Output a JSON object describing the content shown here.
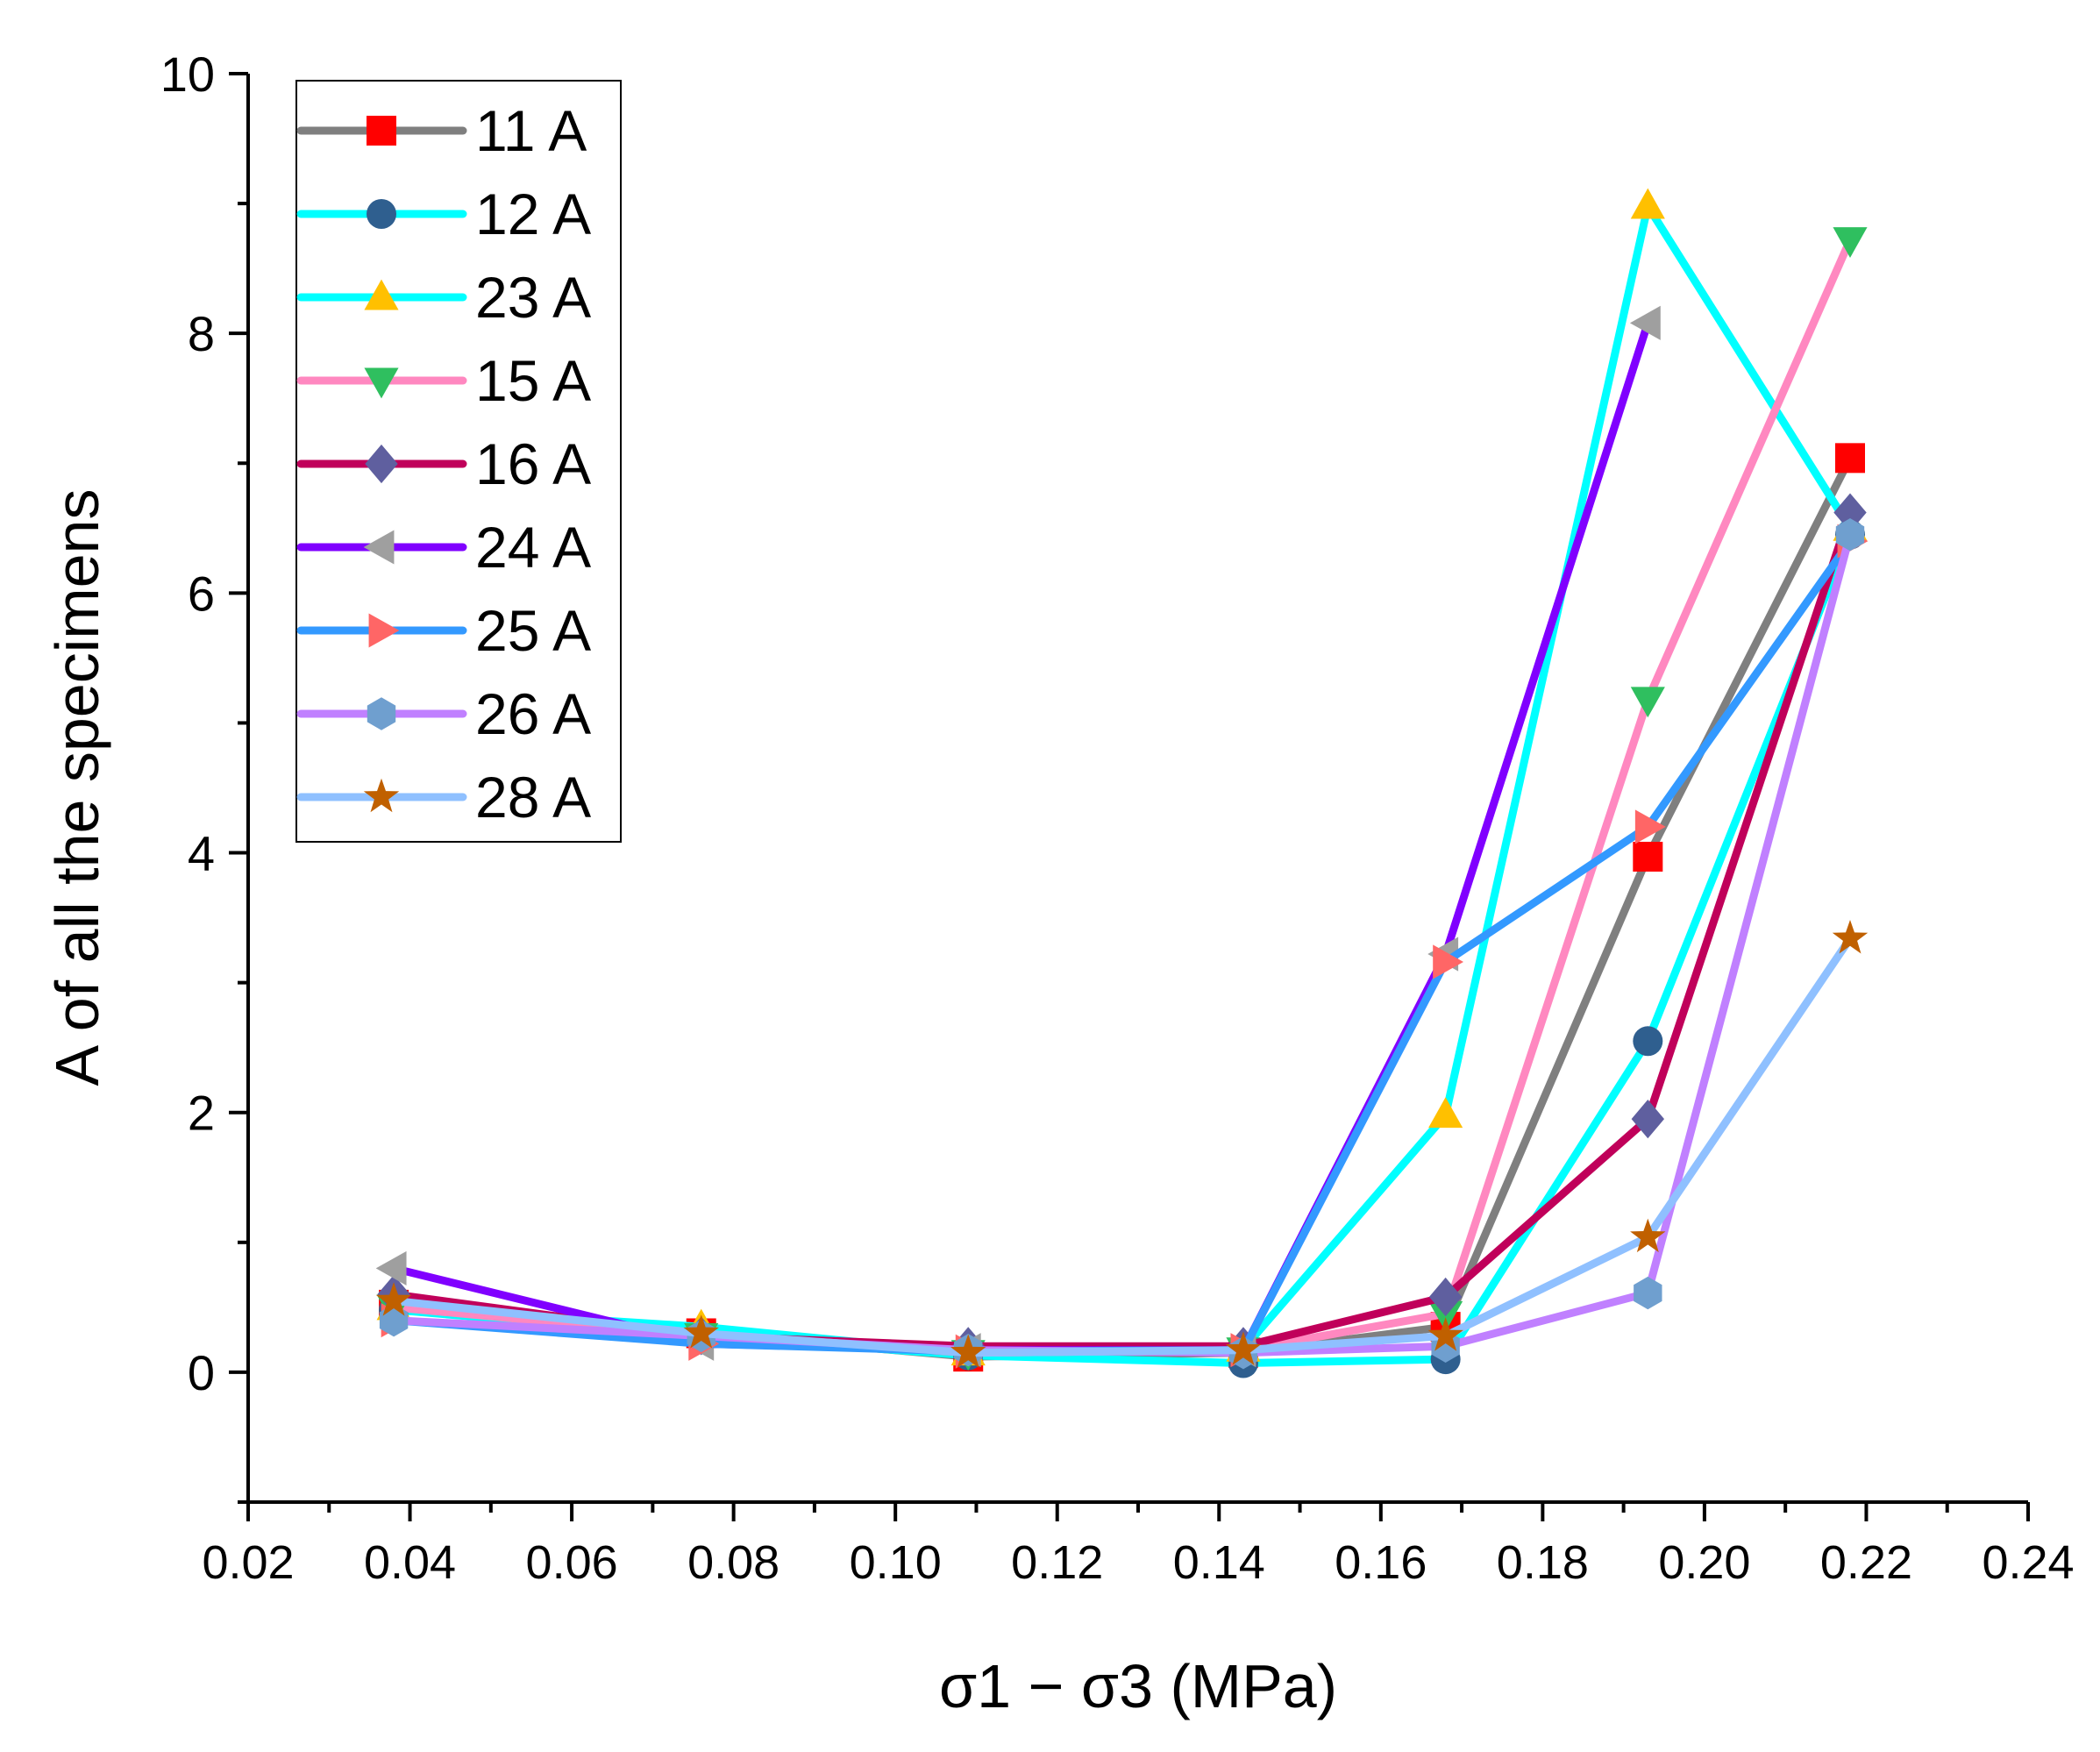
{
  "chart_data": {
    "type": "line",
    "xlabel": "σ1 − σ3 (MPa)",
    "ylabel": "A of all the specimens",
    "xlim": [
      0.02,
      0.24
    ],
    "ylim": [
      -1,
      10
    ],
    "x_ticks": [
      0.02,
      0.04,
      0.06,
      0.08,
      0.1,
      0.12,
      0.14,
      0.16,
      0.18,
      0.2,
      0.22,
      0.24
    ],
    "x_tick_labels": [
      "0.02",
      "0.04",
      "0.06",
      "0.08",
      "0.10",
      "0.12",
      "0.14",
      "0.16",
      "0.18",
      "0.20",
      "0.22",
      "0.24"
    ],
    "y_ticks": [
      0,
      2,
      4,
      6,
      8,
      10
    ],
    "y_tick_labels": [
      "0",
      "2",
      "4",
      "6",
      "8",
      "10"
    ],
    "grid": false,
    "legend_position": "top-left",
    "x": [
      0.038,
      0.076,
      0.109,
      0.143,
      0.168,
      0.193,
      0.218
    ],
    "series": [
      {
        "name": "11 A",
        "line_color": "#7f7f7f",
        "marker": "square",
        "marker_color": "#ff0000",
        "values": [
          0.52,
          0.3,
          0.12,
          0.15,
          0.35,
          3.97,
          7.04
        ]
      },
      {
        "name": "12 A",
        "line_color": "#00ffff",
        "marker": "circle",
        "marker_color": "#2f5f8f",
        "values": [
          0.48,
          0.28,
          0.13,
          0.07,
          0.1,
          2.55,
          6.45
        ]
      },
      {
        "name": "23 A",
        "line_color": "#00ffff",
        "marker": "triangle-up",
        "marker_color": "#ffc000",
        "values": [
          0.5,
          0.35,
          0.15,
          0.18,
          1.98,
          8.98,
          6.5
        ]
      },
      {
        "name": "15 A",
        "line_color": "#ff88c0",
        "marker": "triangle-down",
        "marker_color": "#2fbf5f",
        "values": [
          0.5,
          0.28,
          0.15,
          0.17,
          0.45,
          5.18,
          8.72
        ]
      },
      {
        "name": "16 A",
        "line_color": "#c0005a",
        "marker": "diamond",
        "marker_color": "#5f5f9f",
        "values": [
          0.6,
          0.28,
          0.2,
          0.2,
          0.58,
          1.95,
          6.62
        ]
      },
      {
        "name": "24 A",
        "line_color": "#8000ff",
        "marker": "triangle-left",
        "marker_color": "#9f9f9f",
        "values": [
          0.8,
          0.22,
          0.17,
          0.17,
          3.22,
          8.08,
          null
        ]
      },
      {
        "name": "25 A",
        "line_color": "#3399ff",
        "marker": "triangle-right",
        "marker_color": "#ff6666",
        "values": [
          0.4,
          0.22,
          0.16,
          0.17,
          3.16,
          4.2,
          6.4
        ]
      },
      {
        "name": "26 A",
        "line_color": "#c080ff",
        "marker": "hexagon",
        "marker_color": "#6f9fcf",
        "values": [
          0.4,
          0.28,
          0.17,
          0.15,
          0.2,
          0.61,
          6.45
        ]
      },
      {
        "name": "28 A",
        "line_color": "#8fc0ff",
        "marker": "star",
        "marker_color": "#c06000",
        "values": [
          0.55,
          0.3,
          0.15,
          0.17,
          0.28,
          1.04,
          3.34
        ]
      }
    ]
  }
}
